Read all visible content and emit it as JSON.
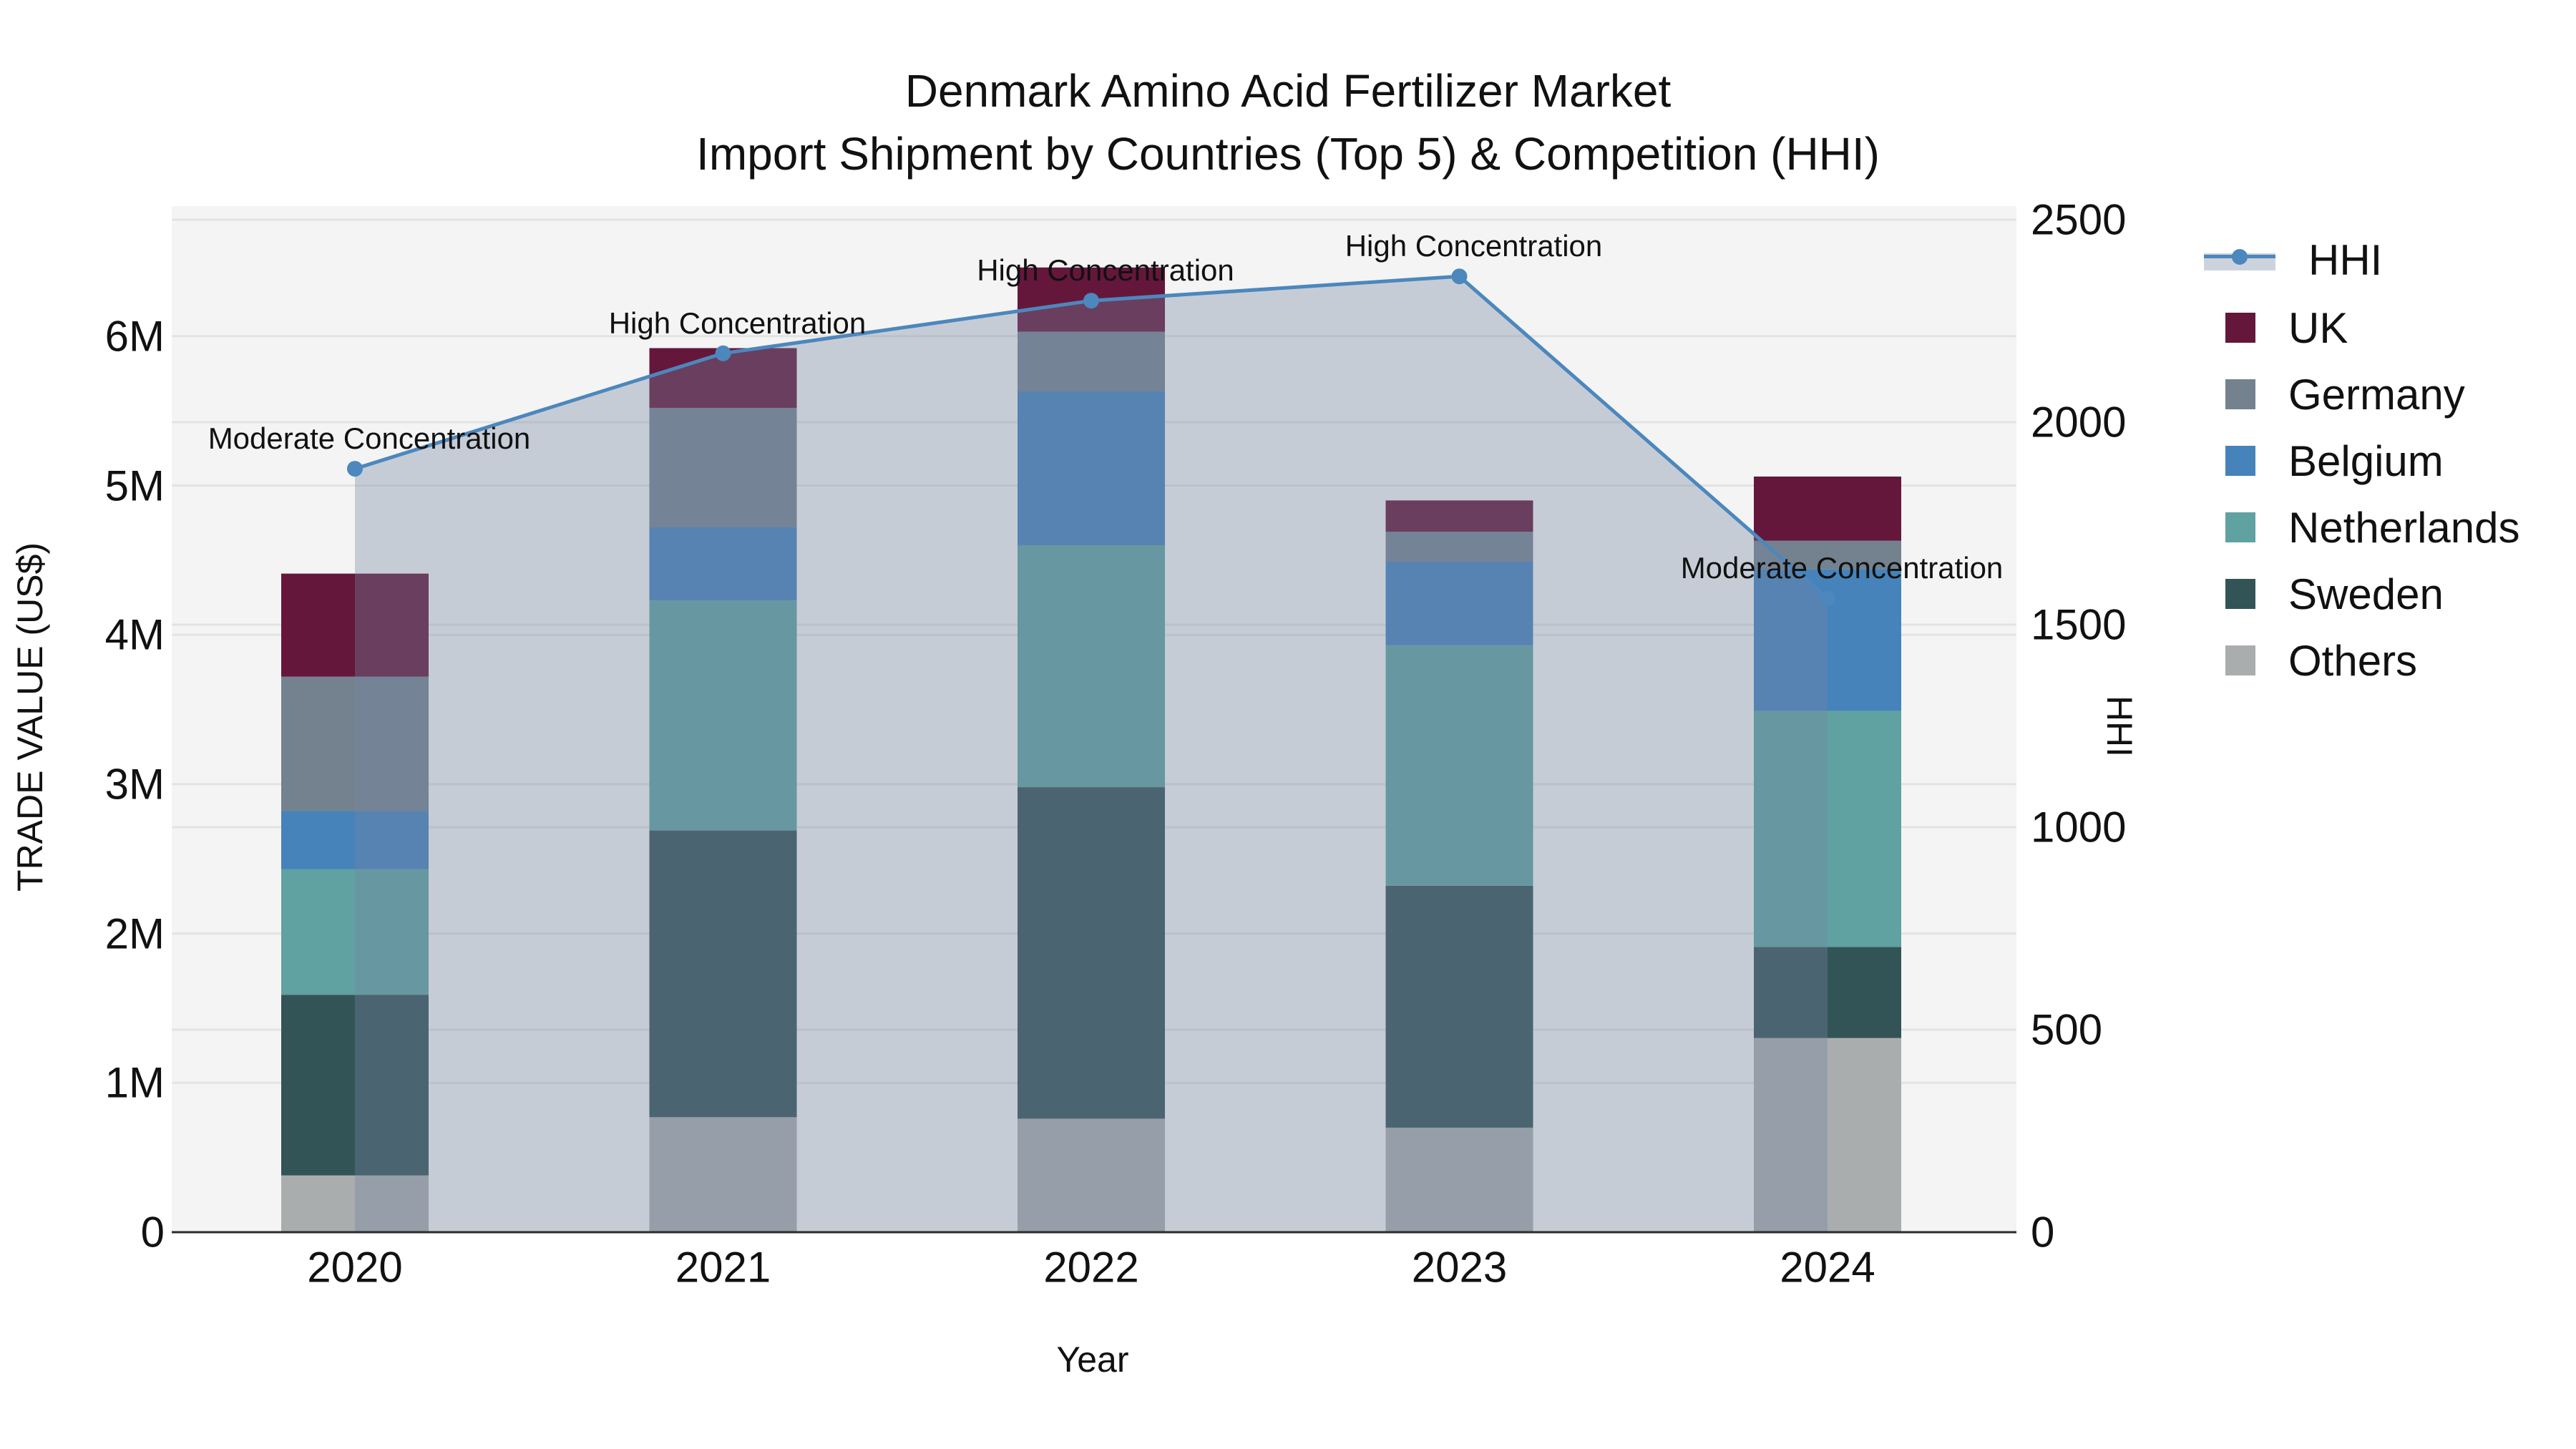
{
  "title": {
    "line1": "Denmark Amino Acid Fertilizer Market",
    "line2": "Import Shipment by Countries (Top 5) & Competition (HHI)"
  },
  "axes": {
    "left_label": "TRADE VALUE (US$)",
    "bottom_label": "Year",
    "right_label": "HHI"
  },
  "legend": [
    {
      "label": "HHI",
      "type": "line",
      "color": "#4c87bd",
      "band": "#ccd3dc"
    },
    {
      "label": "UK",
      "type": "patch",
      "color": "#65173b"
    },
    {
      "label": "Germany",
      "type": "patch",
      "color": "#74828f"
    },
    {
      "label": "Belgium",
      "type": "patch",
      "color": "#4583ba"
    },
    {
      "label": "Netherlands",
      "type": "patch",
      "color": "#60a1a2"
    },
    {
      "label": "Sweden",
      "type": "patch",
      "color": "#335457"
    },
    {
      "label": "Others",
      "type": "patch",
      "color": "#aaadae"
    }
  ],
  "chart_data": {
    "type": "bar",
    "subtype": "stacked-bars-with-line-overlay",
    "categories": [
      "2020",
      "2021",
      "2022",
      "2023",
      "2024"
    ],
    "bar_unit": "million US$",
    "series": [
      {
        "name": "Others",
        "color": "#aaadae",
        "values": [
          0.38,
          0.77,
          0.76,
          0.7,
          1.3
        ]
      },
      {
        "name": "Sweden",
        "color": "#335457",
        "values": [
          1.21,
          1.92,
          2.22,
          1.62,
          0.61
        ]
      },
      {
        "name": "Netherlands",
        "color": "#60a1a2",
        "values": [
          0.84,
          1.54,
          1.62,
          1.61,
          1.58
        ]
      },
      {
        "name": "Belgium",
        "color": "#4583ba",
        "values": [
          0.39,
          0.49,
          1.03,
          0.56,
          0.95
        ]
      },
      {
        "name": "Germany",
        "color": "#74828f",
        "values": [
          0.9,
          0.8,
          0.4,
          0.2,
          0.19
        ]
      },
      {
        "name": "UK",
        "color": "#65173b",
        "values": [
          0.69,
          0.4,
          0.43,
          0.21,
          0.43
        ]
      }
    ],
    "bar_totals": [
      4.41,
      5.92,
      6.46,
      4.9,
      5.06
    ],
    "line_series": {
      "name": "HHI",
      "axis": "right",
      "color": "#4c87bd",
      "area_fill": "rgba(116,134,160,0.36)",
      "values": [
        1885,
        2170,
        2300,
        2360,
        1565
      ]
    },
    "annotations": [
      {
        "category": "2020",
        "text": "Moderate Concentration"
      },
      {
        "category": "2021",
        "text": "High Concentration"
      },
      {
        "category": "2022",
        "text": "High Concentration"
      },
      {
        "category": "2023",
        "text": "High Concentration"
      },
      {
        "category": "2024",
        "text": "Moderate Concentration"
      }
    ],
    "xlabel": "Year",
    "ylabel": "TRADE VALUE (US$)",
    "y2label": "HHI",
    "left_axis": {
      "tick_labels": [
        "0",
        "1M",
        "2M",
        "3M",
        "4M",
        "5M",
        "6M"
      ],
      "tick_values_M": [
        0,
        1,
        2,
        3,
        4,
        5,
        6
      ],
      "max_M": 6.87
    },
    "right_axis": {
      "tick_labels": [
        "0",
        "500",
        "1000",
        "1500",
        "2000",
        "2500"
      ],
      "tick_values": [
        0,
        500,
        1000,
        1500,
        2000,
        2500
      ],
      "max": 2525
    },
    "grid": "horizontal, both axes tick sets",
    "plot_bg": "#f4f4f4",
    "grid_color": "#e3e3e3",
    "spine_color": "#2b2b2b",
    "legend_position": "outside-right"
  }
}
